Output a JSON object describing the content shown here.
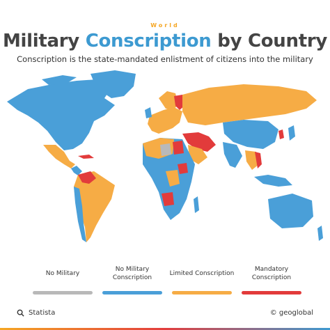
{
  "header": {
    "kicker": "World",
    "title_part1": "Military ",
    "title_accent": "Conscription",
    "title_part2": " by Country",
    "subtitle": "Conscription is the state-mandated enlistment of citizens into the military"
  },
  "colors": {
    "no_military": "#b9b9b9",
    "no_conscription": "#4a9fd8",
    "limited": "#f6ac45",
    "mandatory": "#e23b3b",
    "title_accent": "#3d9ad1"
  },
  "legend": [
    {
      "label": "No Military",
      "color": "#b9b9b9"
    },
    {
      "label": "No Military Conscription",
      "color": "#4a9fd8"
    },
    {
      "label": "Limited Conscription",
      "color": "#f6ac45"
    },
    {
      "label": "Mandatory Conscription",
      "color": "#e23b3b"
    }
  ],
  "footer": {
    "source": "Statista",
    "source_icon": "search-icon",
    "brand": "© geoglobal"
  }
}
